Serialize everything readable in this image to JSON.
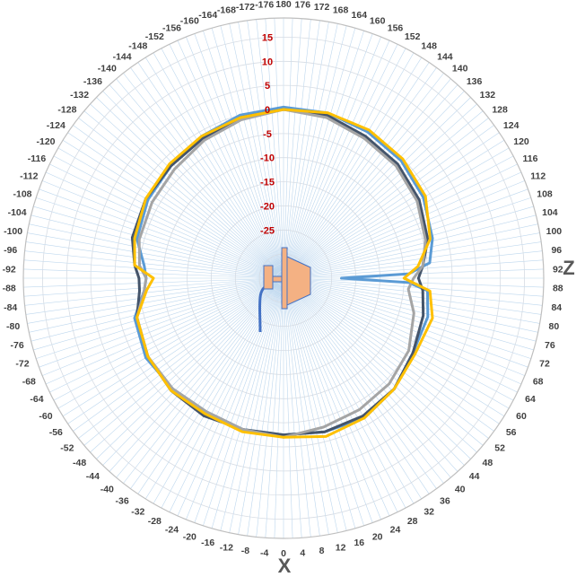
{
  "chart_data": {
    "type": "polar_line",
    "title": "",
    "angle_unit": "degrees",
    "angle_ticks": [
      180,
      176,
      172,
      168,
      164,
      160,
      156,
      152,
      148,
      144,
      140,
      136,
      132,
      128,
      124,
      120,
      116,
      112,
      108,
      104,
      100,
      96,
      92,
      88,
      84,
      80,
      76,
      72,
      68,
      64,
      60,
      56,
      52,
      48,
      44,
      40,
      36,
      32,
      28,
      24,
      20,
      16,
      12,
      8,
      4,
      0,
      -4,
      -8,
      -12,
      -16,
      -20,
      -24,
      -28,
      -32,
      -36,
      -40,
      -44,
      -48,
      -52,
      -56,
      -60,
      -64,
      -68,
      -72,
      -76,
      -80,
      -84,
      -88,
      -92,
      -96,
      -100,
      -104,
      -108,
      -112,
      -116,
      -120,
      -124,
      -128,
      -132,
      -136,
      -140,
      -144,
      -148,
      -152,
      -156,
      -160,
      -164,
      -168,
      -172,
      -176
    ],
    "radial_ticks": [
      15,
      10,
      5,
      0,
      -5,
      -10,
      -15,
      -20,
      -25
    ],
    "rlim": [
      -35,
      15
    ],
    "grid": true,
    "axis_labels": {
      "z": "Z",
      "x": "X"
    },
    "series": [
      {
        "color": "#5b9bd5",
        "points": [
          [
            0,
            -2.5
          ],
          [
            15,
            -2
          ],
          [
            30,
            -1.5
          ],
          [
            45,
            -2.5
          ],
          [
            60,
            -4
          ],
          [
            75,
            -4
          ],
          [
            85,
            -5
          ],
          [
            88,
            -9
          ],
          [
            90,
            -23
          ],
          [
            92,
            -9
          ],
          [
            96,
            -4.5
          ],
          [
            105,
            -3
          ],
          [
            120,
            -1.5
          ],
          [
            135,
            -0.5
          ],
          [
            150,
            0
          ],
          [
            165,
            0.5
          ],
          [
            180,
            0.5
          ],
          [
            -165,
            0
          ],
          [
            -150,
            -1
          ],
          [
            -135,
            -2
          ],
          [
            -120,
            -2.5
          ],
          [
            -105,
            -3.5
          ],
          [
            -95,
            -6
          ],
          [
            -90,
            -6.5
          ],
          [
            -85,
            -6
          ],
          [
            -75,
            -3
          ],
          [
            -60,
            -2
          ],
          [
            -45,
            -2.5
          ],
          [
            -30,
            -3
          ],
          [
            -15,
            -2.5
          ]
        ]
      },
      {
        "color": "#44546a",
        "points": [
          [
            0,
            -2.5
          ],
          [
            15,
            -2
          ],
          [
            30,
            -2
          ],
          [
            45,
            -2.5
          ],
          [
            60,
            -4
          ],
          [
            75,
            -5
          ],
          [
            85,
            -6
          ],
          [
            90,
            -7
          ],
          [
            95,
            -6
          ],
          [
            105,
            -4
          ],
          [
            120,
            -2.5
          ],
          [
            135,
            -1.5
          ],
          [
            150,
            -1
          ],
          [
            165,
            0
          ],
          [
            180,
            0
          ],
          [
            -165,
            -0.5
          ],
          [
            -150,
            -1.5
          ],
          [
            -135,
            -2
          ],
          [
            -120,
            -2
          ],
          [
            -105,
            -2.5
          ],
          [
            -95,
            -4
          ],
          [
            -90,
            -5
          ],
          [
            -85,
            -5
          ],
          [
            -75,
            -3.5
          ],
          [
            -60,
            -2.5
          ],
          [
            -45,
            -2
          ],
          [
            -30,
            -2
          ],
          [
            -15,
            -2.5
          ]
        ]
      },
      {
        "color": "#a5a5a5",
        "points": [
          [
            0,
            -2
          ],
          [
            15,
            -3
          ],
          [
            30,
            -3.5
          ],
          [
            45,
            -4
          ],
          [
            60,
            -5
          ],
          [
            75,
            -7
          ],
          [
            85,
            -9
          ],
          [
            90,
            -8
          ],
          [
            95,
            -6
          ],
          [
            105,
            -4.5
          ],
          [
            120,
            -3
          ],
          [
            135,
            -2
          ],
          [
            150,
            -1.5
          ],
          [
            165,
            -0.5
          ],
          [
            180,
            0
          ],
          [
            -165,
            -1
          ],
          [
            -150,
            -2
          ],
          [
            -135,
            -3
          ],
          [
            -120,
            -3.5
          ],
          [
            -105,
            -4
          ],
          [
            -95,
            -5
          ],
          [
            -90,
            -6.5
          ],
          [
            -85,
            -6
          ],
          [
            -75,
            -3.5
          ],
          [
            -60,
            -2.5
          ],
          [
            -45,
            -2.5
          ],
          [
            -30,
            -3
          ],
          [
            -15,
            -2.5
          ]
        ]
      },
      {
        "color": "#ffc000",
        "points": [
          [
            0,
            -2
          ],
          [
            15,
            -1
          ],
          [
            30,
            -1.5
          ],
          [
            45,
            -2.5
          ],
          [
            60,
            -3.5
          ],
          [
            75,
            -3
          ],
          [
            85,
            -4.5
          ],
          [
            90,
            -10
          ],
          [
            95,
            -7
          ],
          [
            105,
            -3.5
          ],
          [
            120,
            -1
          ],
          [
            135,
            0
          ],
          [
            150,
            0.5
          ],
          [
            165,
            0.5
          ],
          [
            180,
            0
          ],
          [
            -165,
            -0.5
          ],
          [
            -150,
            -1
          ],
          [
            -135,
            -1.5
          ],
          [
            -120,
            -2
          ],
          [
            -105,
            -3
          ],
          [
            -95,
            -4
          ],
          [
            -90,
            -8
          ],
          [
            -85,
            -6.5
          ],
          [
            -75,
            -3.5
          ],
          [
            -60,
            -2.5
          ],
          [
            -45,
            -2
          ],
          [
            -30,
            -2.5
          ],
          [
            -15,
            -2
          ]
        ]
      }
    ]
  },
  "colors": {
    "grid_spoke": "#bdd7ee",
    "grid_ring": "#d6dce4",
    "outer_ring": "#bfbfbf",
    "radial_label": "#c00000",
    "device_fill": "#f4b183",
    "device_stroke": "#4472c4",
    "cable": "#4472c4"
  }
}
